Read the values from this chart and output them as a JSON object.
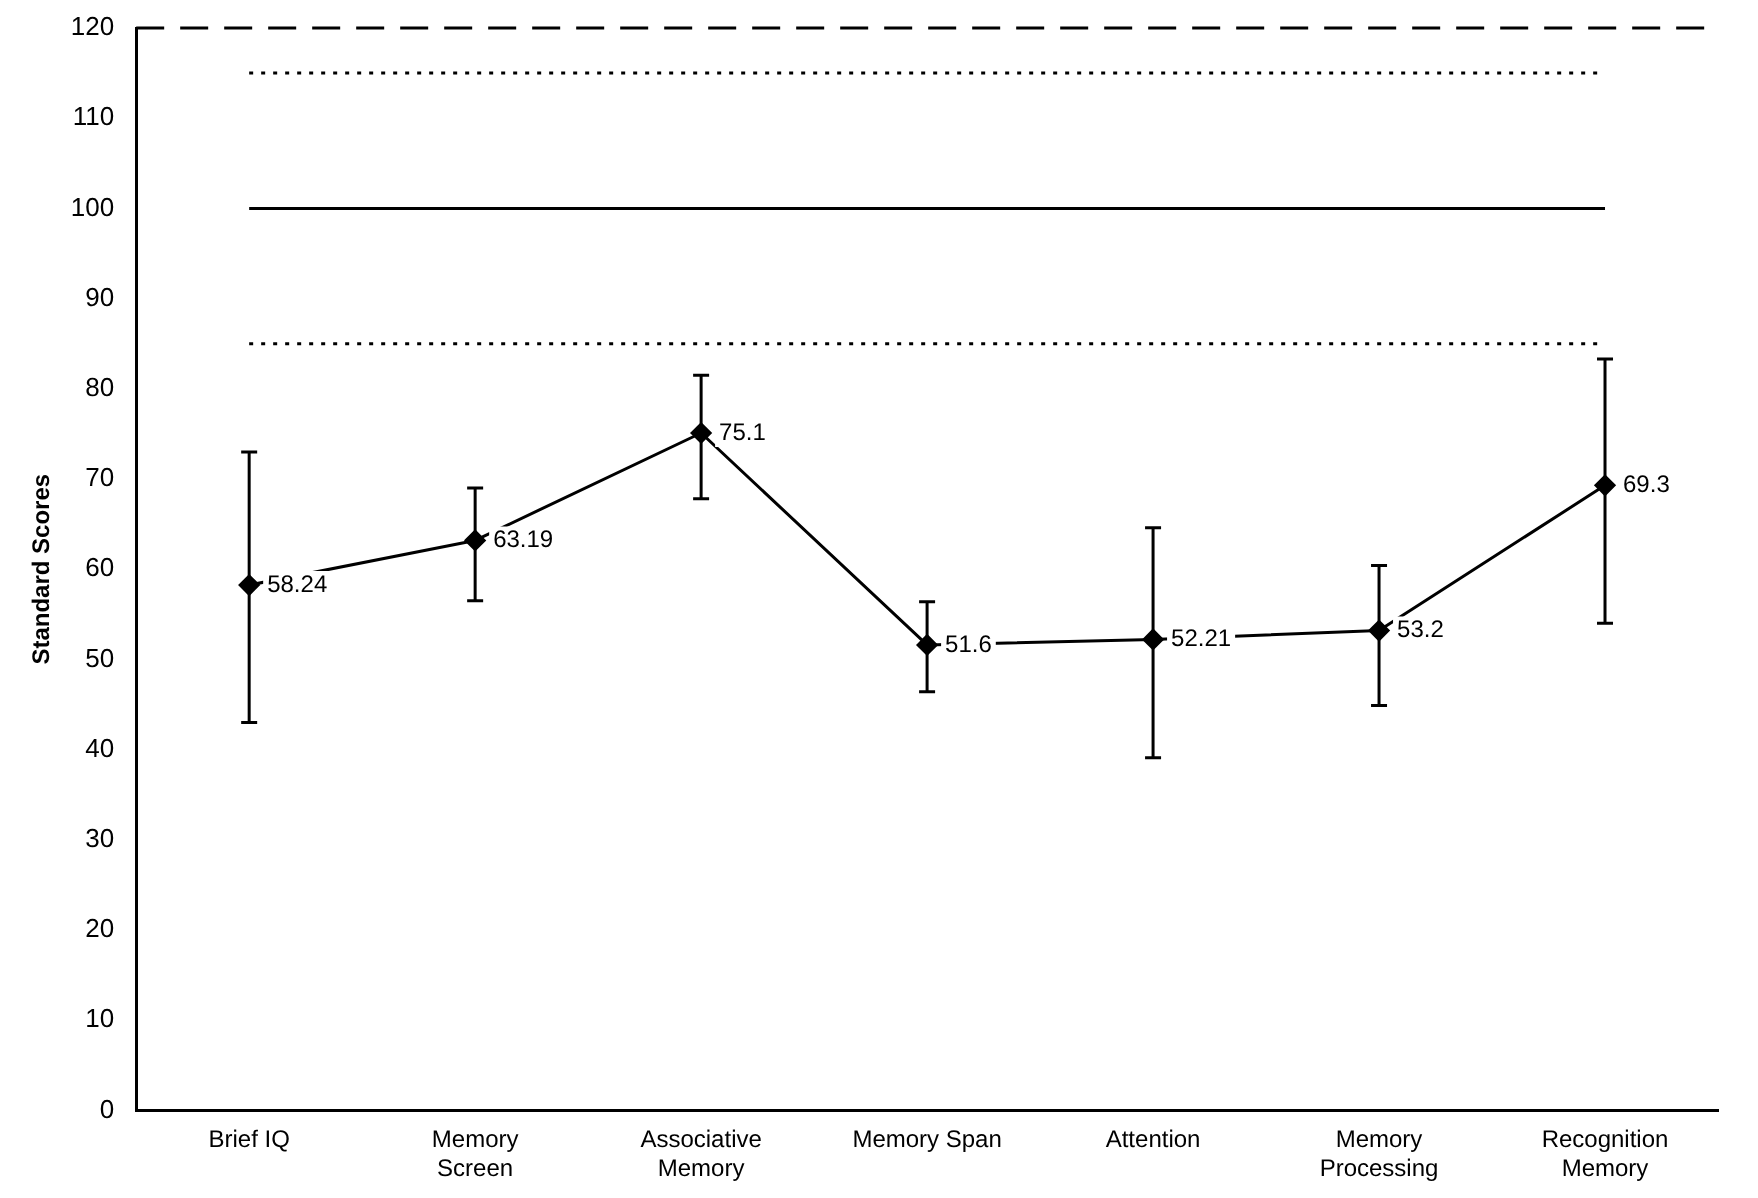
{
  "chart_data": {
    "type": "line",
    "ylabel": "Standard Scores",
    "categories": [
      "Brief IQ",
      "Memory Screen",
      "Associative Memory",
      "Memory Span",
      "Attention",
      "Memory Processing",
      "Recognition Memory"
    ],
    "values": [
      58.24,
      63.19,
      75.1,
      51.6,
      52.21,
      53.2,
      69.3
    ],
    "errors": [
      [
        43.0,
        73.0
      ],
      [
        56.5,
        69.0
      ],
      [
        67.8,
        81.5
      ],
      [
        46.4,
        56.4
      ],
      [
        39.1,
        64.6
      ],
      [
        44.9,
        60.4
      ],
      [
        54.0,
        83.3
      ]
    ],
    "color": "#000000",
    "marker": "diamond",
    "line_style": "solid",
    "data_labels": true,
    "ylim": [
      0,
      120
    ],
    "yticks": [
      0,
      10,
      20,
      30,
      40,
      50,
      60,
      70,
      80,
      90,
      100,
      110,
      120
    ],
    "grid": false,
    "legend": false,
    "ref_lines": [
      {
        "axis": "y",
        "value": 120,
        "line_style": "dashed",
        "color": "#000000"
      },
      {
        "axis": "y",
        "value": 115,
        "line_style": "dotted",
        "color": "#000000"
      },
      {
        "axis": "y",
        "value": 100,
        "line_style": "solid",
        "color": "#000000"
      },
      {
        "axis": "y",
        "value": 85,
        "line_style": "dotted",
        "color": "#000000"
      }
    ]
  }
}
